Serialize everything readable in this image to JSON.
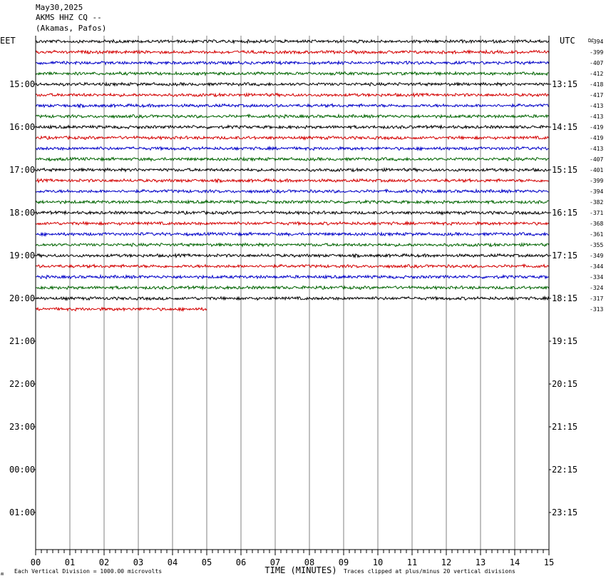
{
  "header": {
    "date": "May30,2025",
    "station": "AKMS HHZ CQ --",
    "location": "(Akamas, Pafos)"
  },
  "left_timezone": "EET",
  "right_timezone": "UTC",
  "dc_label": "DC",
  "footer": {
    "scale_note": "Each Vertical Division = 1000.00 microvolts",
    "xlabel": "TIME (MINUTES)",
    "clip_note": "Traces clipped at plus/minus 20 vertical divisions",
    "corner_mark": "ʍ"
  },
  "colors": {
    "trace_cycle": [
      "#000000",
      "#d40000",
      "#0000c8",
      "#006400"
    ],
    "grid": "#808080",
    "frame": "#000000"
  },
  "chart_data": {
    "type": "line",
    "subtype": "helicorder",
    "x_unit": "minutes",
    "xlim": [
      0,
      15
    ],
    "x_ticks": [
      "00",
      "01",
      "02",
      "03",
      "04",
      "05",
      "06",
      "07",
      "08",
      "09",
      "10",
      "11",
      "12",
      "13",
      "14",
      "15"
    ],
    "row_minutes": 15,
    "rows_per_hour": 4,
    "total_rows": 48,
    "hour_labels_left": [
      "15:00",
      "16:00",
      "17:00",
      "18:00",
      "19:00",
      "20:00",
      "21:00",
      "22:00",
      "23:00",
      "00:00",
      "01:00"
    ],
    "hour_labels_right": [
      "13:15",
      "14:15",
      "15:15",
      "16:15",
      "17:15",
      "18:15",
      "19:15",
      "20:15",
      "21:15",
      "22:15",
      "23:15"
    ],
    "dc_offsets": [
      "-394",
      "-399",
      "-407",
      "-412",
      "-418",
      "-417",
      "-413",
      "-413",
      "-419",
      "-419",
      "-413",
      "-407",
      "-401",
      "-399",
      "-394",
      "-382",
      "-371",
      "-368",
      "-361",
      "-355",
      "-349",
      "-344",
      "-334",
      "-324",
      "-317",
      "-313"
    ],
    "last_row_end_minute": 5.0
  }
}
